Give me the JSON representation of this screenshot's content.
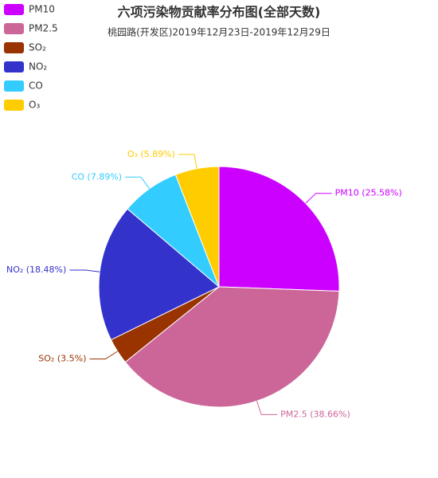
{
  "chart_data": {
    "type": "pie",
    "title": "六项污染物贡献率分布图(全部天数)",
    "subtitle": "桃园路(开发区)2019年12月23日-2019年12月29日",
    "categories": [
      "PM10",
      "PM2.5",
      "SO₂",
      "NO₂",
      "CO",
      "O₃"
    ],
    "values": [
      25.58,
      38.66,
      3.5,
      18.48,
      7.89,
      5.89
    ],
    "value_labels": [
      "PM10 (25.58%)",
      "PM2.5 (38.66%)",
      "SO₂ (3.5%)",
      "NO₂ (18.48%)",
      "CO (7.89%)",
      "O₃ (5.89%)"
    ],
    "colors": [
      "#cc00ff",
      "#cc6699",
      "#993300",
      "#3333cc",
      "#33ccff",
      "#ffcc00"
    ],
    "legend": "top-left"
  }
}
